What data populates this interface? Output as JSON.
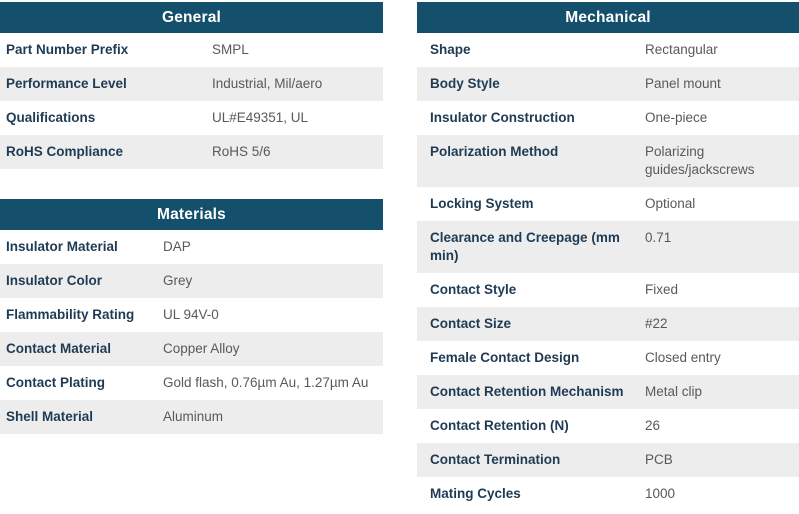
{
  "theme": {
    "header_bg": "#14506b",
    "header_text": "#ffffff",
    "label_color": "#1f3b54",
    "value_color": "#58595b",
    "alt_row_bg": "#ededed"
  },
  "tables": {
    "general": {
      "title": "General",
      "rows": [
        {
          "label": "Part Number Prefix",
          "value": "SMPL"
        },
        {
          "label": "Performance Level",
          "value": "Industrial, Mil/aero"
        },
        {
          "label": "Qualifications",
          "value": "UL#E49351, UL"
        },
        {
          "label": "RoHS Compliance",
          "value": "RoHS 5/6"
        }
      ]
    },
    "materials": {
      "title": "Materials",
      "rows": [
        {
          "label": "Insulator Material",
          "value": "DAP"
        },
        {
          "label": "Insulator Color",
          "value": "Grey"
        },
        {
          "label": "Flammability Rating",
          "value": "UL 94V-0"
        },
        {
          "label": "Contact Material",
          "value": "Copper Alloy"
        },
        {
          "label": "Contact Plating",
          "value": "Gold flash, 0.76µm Au, 1.27µm Au"
        },
        {
          "label": "Shell Material",
          "value": "Aluminum"
        }
      ]
    },
    "mechanical": {
      "title": "Mechanical",
      "rows": [
        {
          "label": "Shape",
          "value": "Rectangular"
        },
        {
          "label": "Body Style",
          "value": "Panel mount"
        },
        {
          "label": "Insulator Construction",
          "value": "One-piece"
        },
        {
          "label": "Polarization Method",
          "value": "Polarizing guides/jackscrews"
        },
        {
          "label": "Locking System",
          "value": "Optional"
        },
        {
          "label": "Clearance and Creepage (mm min)",
          "value": "0.71"
        },
        {
          "label": "Contact Style",
          "value": "Fixed"
        },
        {
          "label": "Contact Size",
          "value": "#22"
        },
        {
          "label": "Female Contact Design",
          "value": "Closed entry"
        },
        {
          "label": "Contact Retention Mechanism",
          "value": "Metal clip"
        },
        {
          "label": "Contact Retention (N)",
          "value": "26"
        },
        {
          "label": "Contact Termination",
          "value": "PCB"
        },
        {
          "label": "Mating Cycles",
          "value": "1000"
        }
      ]
    }
  }
}
